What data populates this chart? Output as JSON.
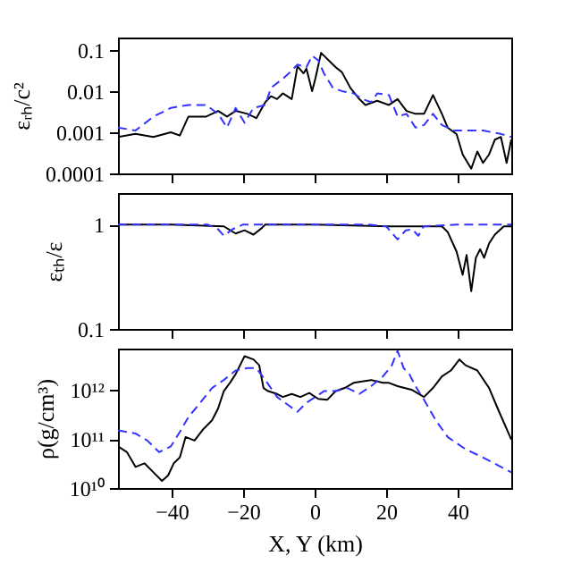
{
  "chart_data": [
    {
      "type": "line",
      "ylabel": "εᵣₕ/c²",
      "log": "y",
      "grid": false,
      "tick_labels": "y",
      "xlim": [
        -55,
        55
      ],
      "xticks": [
        -40,
        -20,
        0,
        20,
        40
      ],
      "ylim": [
        0.0001,
        0.2
      ],
      "yticks": [
        0.0001,
        0.001,
        0.01,
        0.1
      ],
      "series": [
        {
          "color": "#000000",
          "line_style": "solid",
          "x": [
            -55,
            -50.1,
            -45.1,
            -40.2,
            -37.7,
            -35.3,
            -30.3,
            -27.0,
            -24.5,
            -22.1,
            -18.8,
            -16.3,
            -13.8,
            -12.2,
            -10.5,
            -8.9,
            -6.4,
            -4.8,
            -3.1,
            -2.3,
            -0.7,
            0.2,
            1.8,
            4.3,
            5.9,
            7.6,
            10.0,
            12.5,
            14.2,
            17.5,
            20.8,
            23.2,
            25.7,
            28.2,
            30.6,
            33.1,
            35.6,
            37.2,
            39.7,
            41.4,
            43.8,
            45.5,
            47.1,
            48.8,
            50.4,
            52.1,
            53.7,
            55
          ],
          "values": [
            0.00077,
            0.00091,
            0.00077,
            0.001,
            0.00083,
            0.0024,
            0.0024,
            0.0033,
            0.0024,
            0.0033,
            0.0028,
            0.0022,
            0.0054,
            0.0075,
            0.0064,
            0.0088,
            0.0064,
            0.04,
            0.027,
            0.035,
            0.01,
            0.02,
            0.085,
            0.052,
            0.038,
            0.029,
            0.012,
            0.0064,
            0.0046,
            0.0058,
            0.0046,
            0.0064,
            0.0033,
            0.0028,
            0.0028,
            0.008,
            0.0028,
            0.0013,
            0.0009,
            0.00029,
            0.00013,
            0.00034,
            0.00018,
            0.00029,
            0.00066,
            0.00077,
            0.00018,
            0.00066
          ]
        },
        {
          "color": "#3333ff",
          "line_style": "dashed",
          "x": [
            -55,
            -50.1,
            -45.1,
            -40.2,
            -35.3,
            -30.3,
            -27.0,
            -24.5,
            -22.1,
            -19.6,
            -17.1,
            -13.8,
            -12.2,
            -8.9,
            -7.2,
            -4.8,
            -2.3,
            -0.7,
            1.0,
            2.6,
            5.1,
            7.6,
            10.9,
            13.3,
            15.8,
            17.5,
            20.8,
            23.2,
            25.7,
            28.2,
            30.6,
            33.1,
            35.6,
            38.9,
            42.2,
            47.1,
            52.1,
            55
          ],
          "values": [
            0.0013,
            0.0011,
            0.0024,
            0.0039,
            0.0046,
            0.0046,
            0.0028,
            0.0013,
            0.0039,
            0.0017,
            0.0039,
            0.0046,
            0.012,
            0.02,
            0.027,
            0.044,
            0.038,
            0.072,
            0.056,
            0.027,
            0.012,
            0.01,
            0.0088,
            0.0064,
            0.0054,
            0.0088,
            0.008,
            0.0024,
            0.0028,
            0.0013,
            0.0015,
            0.0028,
            0.0015,
            0.0011,
            0.0011,
            0.0011,
            0.00091,
            0.00077
          ]
        }
      ]
    },
    {
      "type": "line",
      "ylabel": "εₜₕ/ε",
      "log": "y",
      "grid": false,
      "tick_labels": "y",
      "xlim": [
        -55,
        55
      ],
      "xticks": [
        -40,
        -20,
        0,
        20,
        40
      ],
      "ylim": [
        0.1,
        2
      ],
      "yticks": [
        0.1,
        1
      ],
      "series": [
        {
          "color": "#000000",
          "line_style": "solid",
          "x": [
            -55,
            -40,
            -25.4,
            -22.1,
            -19.6,
            -17.1,
            -14.7,
            -13.8,
            0,
            20.8,
            30,
            35.6,
            37.2,
            39.7,
            41.4,
            42.5,
            43.8,
            45.1,
            46.3,
            47.4,
            48.8,
            50.4,
            52.9,
            55
          ],
          "values": [
            1.0,
            1.0,
            0.96,
            0.82,
            0.88,
            0.8,
            0.93,
            1.0,
            1.0,
            0.96,
            0.96,
            0.96,
            0.85,
            0.55,
            0.33,
            0.51,
            0.23,
            0.48,
            0.58,
            0.48,
            0.66,
            0.8,
            0.96,
            0.96
          ]
        },
        {
          "color": "#3333ff",
          "line_style": "dashed",
          "x": [
            -55,
            -30,
            -27,
            -25.4,
            -23,
            -20,
            15,
            20,
            23.2,
            25.5,
            27.3,
            29,
            30.5,
            40,
            55
          ],
          "values": [
            1.0,
            1.0,
            0.9,
            0.78,
            0.9,
            1.0,
            1.0,
            0.96,
            0.72,
            0.88,
            0.9,
            0.78,
            0.96,
            1.0,
            1.0
          ]
        }
      ]
    },
    {
      "type": "line",
      "xlabel": "X, Y (km)",
      "ylabel": "ρ(g/cm³)",
      "log": "y",
      "grid": false,
      "xlim": [
        -55,
        55
      ],
      "xticks": [
        -40,
        -20,
        0,
        20,
        40
      ],
      "ylim": [
        10000000000.0,
        7000000000000.0
      ],
      "yticks": [
        {
          "value": 10000000000.0,
          "label": "10¹⁰"
        },
        {
          "value": 100000000000.0,
          "label": "10¹¹"
        },
        {
          "value": 1000000000000.0,
          "label": "10¹²"
        }
      ],
      "series": [
        {
          "color": "#000000",
          "line_style": "solid",
          "x": [
            -55,
            -52.5,
            -50.1,
            -47.6,
            -45.1,
            -42.7,
            -41.0,
            -39.4,
            -37.7,
            -36.1,
            -33.6,
            -31.1,
            -28.7,
            -27.0,
            -25.4,
            -23.7,
            -22.1,
            -19.6,
            -17.1,
            -15.5,
            -14.3,
            -13.0,
            -10.5,
            -8.9,
            -6.4,
            -4.0,
            -1.5,
            1.0,
            3.5,
            5.9,
            8.4,
            10.9,
            13.3,
            15.8,
            19.1,
            20.8,
            23.2,
            27.3,
            30.6,
            33.1,
            35.6,
            38.1,
            40.5,
            42.2,
            45.5,
            48.8,
            51.2,
            55
          ],
          "values": [
            71000000000.0,
            54000000000.0,
            27000000000.0,
            32000000000.0,
            21000000000.0,
            14000000000.0,
            18000000000.0,
            32000000000.0,
            42000000000.0,
            110000000000.0,
            93000000000.0,
            160000000000.0,
            240000000000.0,
            420000000000.0,
            950000000000.0,
            1400000000000.0,
            2100000000000.0,
            4900000000000.0,
            4200000000000.0,
            3200000000000.0,
            1100000000000.0,
            950000000000.0,
            830000000000.0,
            720000000000.0,
            830000000000.0,
            720000000000.0,
            870000000000.0,
            660000000000.0,
            630000000000.0,
            950000000000.0,
            1100000000000.0,
            1400000000000.0,
            1500000000000.0,
            1600000000000.0,
            1400000000000.0,
            1400000000000.0,
            1200000000000.0,
            1000000000000.0,
            720000000000.0,
            1100000000000.0,
            1900000000000.0,
            2500000000000.0,
            4200000000000.0,
            3200000000000.0,
            2500000000000.0,
            1100000000000.0,
            420000000000.0,
            98000000000.0
          ]
        },
        {
          "color": "#3333ff",
          "line_style": "dashed",
          "x": [
            -55,
            -50.1,
            -46.8,
            -43.5,
            -40.2,
            -37.7,
            -35.3,
            -32.0,
            -28.7,
            -25.4,
            -22.1,
            -18.8,
            -16.3,
            -13.8,
            -10.5,
            -7.2,
            -4.8,
            -2.3,
            0.2,
            2.6,
            5.9,
            9.2,
            12.5,
            15.8,
            19.1,
            21.6,
            23.2,
            24.9,
            26.5,
            28.2,
            30.6,
            33.9,
            37.2,
            42.2,
            47.1,
            52.1,
            55
          ],
          "values": [
            150000000000.0,
            130000000000.0,
            93000000000.0,
            54000000000.0,
            71000000000.0,
            140000000000.0,
            280000000000.0,
            550000000000.0,
            1100000000000.0,
            1600000000000.0,
            2500000000000.0,
            2800000000000.0,
            2800000000000.0,
            1600000000000.0,
            720000000000.0,
            480000000000.0,
            360000000000.0,
            550000000000.0,
            720000000000.0,
            950000000000.0,
            950000000000.0,
            1100000000000.0,
            830000000000.0,
            1200000000000.0,
            1900000000000.0,
            3200000000000.0,
            6300000000000.0,
            2800000000000.0,
            2100000000000.0,
            1200000000000.0,
            630000000000.0,
            240000000000.0,
            110000000000.0,
            62000000000.0,
            42000000000.0,
            27000000000.0,
            21000000000.0
          ]
        }
      ]
    }
  ]
}
